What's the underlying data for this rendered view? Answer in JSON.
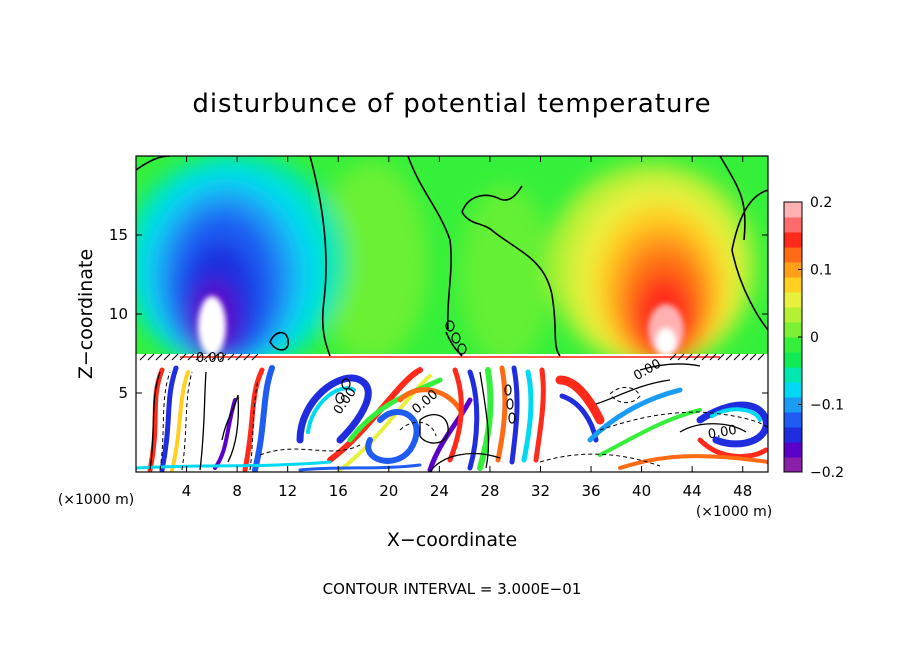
{
  "chart_data": {
    "type": "heatmap",
    "title": "disturbunce of potential temperature",
    "xlabel": "X−coordinate",
    "ylabel": "Z−coordinate",
    "x_unit_left": "(×1000 m)",
    "x_unit_right": "(×1000 m)",
    "xlim": [
      0,
      50
    ],
    "ylim": [
      0,
      20
    ],
    "x_ticks": [
      4,
      8,
      12,
      16,
      20,
      24,
      28,
      32,
      36,
      40,
      44,
      48
    ],
    "y_ticks": [
      5,
      10,
      15
    ],
    "colorbar": {
      "range": [
        -0.2,
        0.2
      ],
      "tick_values": [
        0.2,
        0.1,
        0,
        -0.1,
        -0.2
      ],
      "tick_labels": [
        "0.2",
        "0.1",
        "0",
        "−0.1",
        "−0.2"
      ],
      "colors": [
        "#8a1fa8",
        "#5a00c8",
        "#1f2ddf",
        "#1e5cf2",
        "#1a9cf5",
        "#00d9f2",
        "#00e8b0",
        "#10ea55",
        "#35f03a",
        "#7cf032",
        "#b5f034",
        "#e9f03c",
        "#ffd020",
        "#ff9f1a",
        "#ff6a14",
        "#ff2a1a",
        "#ff6b6b",
        "#ffb0b0"
      ]
    },
    "contour_labels": [
      "0.00",
      "0.00",
      "0.00",
      "0.00",
      "0.00"
    ],
    "footer": "CONTOUR INTERVAL = 3.000E−01"
  }
}
